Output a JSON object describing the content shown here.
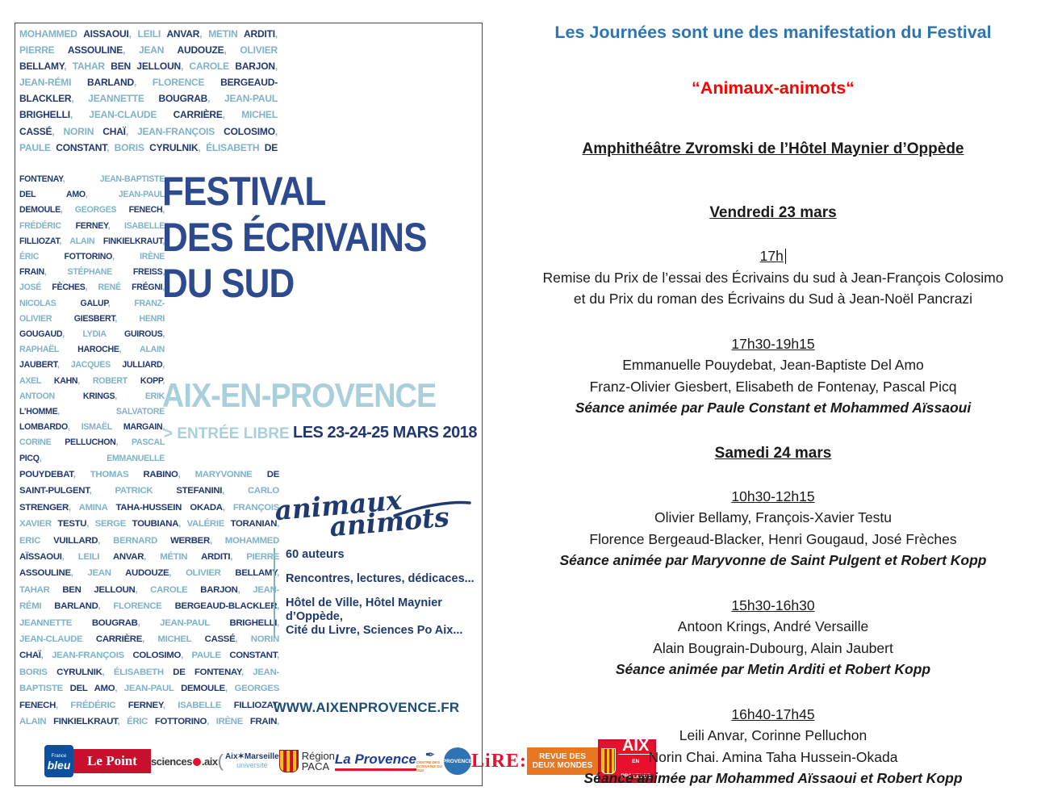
{
  "poster": {
    "names_top": [
      "MOHAMMED *AISSAOUI*, LEILI *ANVAR*, METIN *ARDITI*,",
      "PIERRE *ASSOULINE*, JEAN *AUDOUZE*, OLIVIER",
      "*BELLAMY*, TAHAR *BEN JELLOUN*, CAROLE *BARJON*,",
      "JEAN-RÉMI *BARLAND*, FLORENCE *BERGEAUD-*",
      "*BLACKLER*, JEANNETTE *BOUGRAB*, JEAN-PAUL",
      "*BRIGHELLI*, JEAN-CLAUDE *CARRIÈRE*, MICHEL",
      "*CASSÉ*, NORIN *CHAÏ*, JEAN-FRANÇOIS *COLOSIMO*,",
      "PAULE *CONSTANT*, BORIS *CYRULNIK*, ÉLISABETH *DE*"
    ],
    "names_left": [
      "*FONTENAY*, JEAN-BAPTISTE",
      "*DEL AMO*, JEAN-PAUL",
      "*DEMOULE*, GEORGES *FENECH*,",
      "FRÉDÉRIC *FERNEY*, ISABELLE",
      "*FILLIOZAT*, ALAIN *FINKIELKRAUT*,",
      "ÉRIC *FOTTORINO*, IRÈNE",
      "*FRAIN*, STÉPHANE *FREISS*,",
      "JOSÉ *FÈCHES*, RENÉ *FRÉGNI*,",
      "NICOLAS *GALUP*, FRANZ-",
      "OLIVIER *GIESBERT*, HENRI",
      "*GOUGAUD*, LYDIA *GUIROUS*,",
      "RAPHAËL *HAROCHE*, ALAIN",
      "*JAUBERT*, JACQUES *JULLIARD*,",
      "AXEL *KAHN*, ROBERT *KOPP*,",
      "ANTOON *KRINGS*, ERIK",
      "*L’HOMME*, SALVATORE",
      "*LOMBARDO*, ISMAËL *MARGAIN*,",
      "CORINE *PELLUCHON*, PASCAL",
      "*PICQ*, EMMANUELLE"
    ],
    "names_bottom": [
      "*POUYDEBAT*, THOMAS *RABINO*, MARYVONNE *DE*",
      "*SAINT-PULGENT*, PATRICK *STEFANINI*, CARLO",
      "*STRENGER*, AMINA *TAHA-HUSSEIN OKADA*, FRANÇOIS",
      "XAVIER *TESTU*, SERGE *TOUBIANA*, VALÉRIE *TORANIAN*,",
      "ERIC *VUILLARD*, BERNARD *WERBER*, MOHAMMED",
      "*AÏSSAOUI*, LEILI *ANVAR*, MÉTIN *ARDITI*, PIERRE",
      "*ASSOULINE*, JEAN *AUDOUZE*, OLIVIER *BELLAMY*,",
      "TAHAR *BEN JELLOUN*, CAROLE *BARJON*, JEAN-",
      "RÉMI *BARLAND*, FLORENCE *BERGEAUD-BLACKLER*,",
      "JEANNETTE *BOUGRAB*, JEAN-PAUL *BRIGHELLI*,",
      "JEAN-CLAUDE *CARRIÈRE*, MICHEL *CASSÉ*, NORIN",
      "*CHAÏ*, JEAN-FRANÇOIS *COLOSIMO*, PAULE *CONSTANT*,",
      "BORIS *CYRULNIK*, ÉLISABETH *DE FONTENAY*, JEAN-",
      "BAPTISTE *DEL AMO*, JEAN-PAUL *DEMOULE*, GEORGES",
      "*FENECH*, FRÉDÉRIC *FERNEY*, ISABELLE *FILLIOZAT*,",
      "ALAIN *FINKIELKRAUT*, ÉRIC *FOTTORINO*, IRÈNE *FRAIN*,"
    ],
    "title_line1": "FESTIVAL",
    "title_line2": "DES ÉCRIVAINS",
    "title_line3": "DU SUD",
    "city": "AIX-EN-PROVENCE",
    "entree": "> ENTRÉE LIBRE",
    "dates": "LES 23-24-25 MARS 2018",
    "script_logo_word1": "animaux",
    "script_logo_word2": "animots",
    "info_auteurs": "60 auteurs",
    "info_line2": "Rencontres, lectures, dédicaces...",
    "info_line3": "Hôtel de Ville, Hôtel Maynier d’Oppède,",
    "info_line4": "Cité du Livre, Sciences Po Aix...",
    "website": "WWW.AIXENPROVENCE.FR",
    "sponsors": {
      "bleu_top": "France",
      "bleu": "bleu",
      "lepoint": "Le Point",
      "sciencespo": "sciences",
      "sciencespo_suffix": ".aix",
      "aixmarseille": "Aix✶Marseille",
      "aixmarseille_univ": "université",
      "region": "Région",
      "paca": "PACA",
      "laprovence": "La Provence",
      "centre": "CENTRE DES ÉCRIVAINS DU SUD",
      "provence": "PROVENCE",
      "lire": "LiRE:",
      "revue1": "REVUE DES",
      "revue2": "DEUX MONDES",
      "aix": "AIX",
      "aix_sub": "EN PROVENCE",
      "aix_ville": "LA VILLE"
    }
  },
  "program": {
    "heading": "Les Journées sont une des manifestation du Festival",
    "subheading": "“Animaux-animots“",
    "venue": "Amphithéâtre Zvromski de l’Hôtel Maynier d’Oppède",
    "days": [
      {
        "day": "Vendredi 23 mars",
        "sessions": [
          {
            "time": "17h",
            "caret": true,
            "lines": [
              "Remise du Prix de l’essai des Écrivains du sud à Jean-François Colosimo",
              "et du Prix du roman des Écrivains du Sud à Jean-Noël Pancrazi"
            ],
            "moderation": ""
          },
          {
            "time": "17h30-19h15",
            "lines": [
              "Emmanuelle Pouydebat, Jean-Baptiste Del Amo",
              "Franz-Olivier Giesbert, Elisabeth de Fontenay, Pascal Picq"
            ],
            "moderation": "Séance animée par Paule Constant et Mohammed Aïssaoui"
          }
        ]
      },
      {
        "day": "Samedi 24 mars",
        "sessions": [
          {
            "time": "10h30-12h15",
            "lines": [
              "Olivier Bellamy, François-Xavier Testu",
              "Florence Bergeaud-Blacker, Henri Gougaud, José Frèches"
            ],
            "moderation": "Séance animée par Maryvonne de Saint Pulgent et Robert Kopp"
          },
          {
            "time": "15h30-16h30",
            "lines": [
              "Antoon Krings, André Versaille",
              "Alain Bougrain-Dubourg, Alain Jaubert"
            ],
            "moderation": "Séance animée par Metin Arditi et Robert Kopp"
          },
          {
            "time": "16h40-17h45",
            "lines": [
              "Leili Anvar, Corinne Pelluchon",
              "Norin Chai. Amina Taha Hussein-Okada"
            ],
            "moderation": "Séance animée par Mohammed Aïssaoui et Robert Kopp"
          }
        ]
      }
    ]
  },
  "colors": {
    "name_light": "#7fb2c8",
    "name_dark": "#20386f",
    "title_blue": "#2d4a8e",
    "pale_blue": "#a9cedc",
    "heading_blue": "#2e74b5",
    "accent_red": "#ff0000"
  }
}
